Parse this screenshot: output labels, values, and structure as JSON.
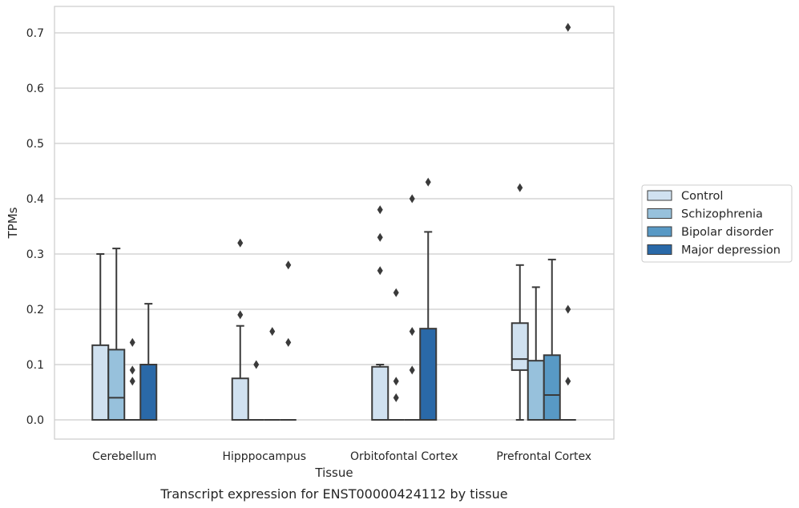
{
  "chart_data": {
    "type": "box",
    "caption": "Transcript expression for ENST00000424112 by tissue",
    "xlabel": "Tissue",
    "ylabel": "TPMs",
    "ylim": [
      -0.035,
      0.745
    ],
    "yticks": [
      "0.0",
      "0.1",
      "0.2",
      "0.3",
      "0.4",
      "0.5",
      "0.6",
      "0.7"
    ],
    "grid": true,
    "legend_position": "right",
    "categories": [
      "Cerebellum",
      "Hipppocampus",
      "Orbitofontal Cortex",
      "Prefrontal Cortex"
    ],
    "series": [
      {
        "name": "Control",
        "color": "#d0e1f0",
        "boxes": [
          {
            "q1": 0,
            "median": 0,
            "q3": 0.135,
            "whislo": 0,
            "whishi": 0.3,
            "fliers": []
          },
          {
            "q1": 0,
            "median": 0,
            "q3": 0.075,
            "whislo": 0,
            "whishi": 0.17,
            "fliers": [
              0.19,
              0.32
            ]
          },
          {
            "q1": 0,
            "median": 0,
            "q3": 0.096,
            "whislo": 0,
            "whishi": 0.1,
            "fliers": [
              0.27,
              0.33,
              0.38
            ]
          },
          {
            "q1": 0.09,
            "median": 0.11,
            "q3": 0.175,
            "whislo": 0,
            "whishi": 0.28,
            "fliers": [
              0.42
            ]
          }
        ]
      },
      {
        "name": "Schizophrenia",
        "color": "#97c1dc",
        "boxes": [
          {
            "q1": 0,
            "median": 0.04,
            "q3": 0.127,
            "whislo": 0,
            "whishi": 0.31,
            "fliers": []
          },
          {
            "q1": 0,
            "median": 0,
            "q3": 0,
            "whislo": 0,
            "whishi": 0,
            "fliers": [
              0.1
            ]
          },
          {
            "q1": 0,
            "median": 0,
            "q3": 0,
            "whislo": 0,
            "whishi": 0,
            "fliers": [
              0.04,
              0.07,
              0.23
            ]
          },
          {
            "q1": 0,
            "median": 0,
            "q3": 0.107,
            "whislo": 0,
            "whishi": 0.24,
            "fliers": []
          }
        ]
      },
      {
        "name": "Bipolar disorder",
        "color": "#5899c5",
        "boxes": [
          {
            "q1": 0,
            "median": 0,
            "q3": 0,
            "whislo": 0,
            "whishi": 0,
            "fliers": [
              0.07,
              0.09,
              0.14
            ]
          },
          {
            "q1": 0,
            "median": 0,
            "q3": 0,
            "whislo": 0,
            "whishi": 0,
            "fliers": [
              0.16
            ]
          },
          {
            "q1": 0,
            "median": 0,
            "q3": 0,
            "whislo": 0,
            "whishi": 0,
            "fliers": [
              0.09,
              0.16,
              0.4
            ]
          },
          {
            "q1": 0,
            "median": 0.045,
            "q3": 0.117,
            "whislo": 0,
            "whishi": 0.29,
            "fliers": []
          }
        ]
      },
      {
        "name": "Major depression",
        "color": "#2a69a8",
        "boxes": [
          {
            "q1": 0,
            "median": 0,
            "q3": 0.1,
            "whislo": 0,
            "whishi": 0.21,
            "fliers": []
          },
          {
            "q1": 0,
            "median": 0,
            "q3": 0,
            "whislo": 0,
            "whishi": 0,
            "fliers": [
              0.14,
              0.28
            ]
          },
          {
            "q1": 0,
            "median": 0,
            "q3": 0.165,
            "whislo": 0,
            "whishi": 0.34,
            "fliers": [
              0.43
            ]
          },
          {
            "q1": 0,
            "median": 0,
            "q3": 0,
            "whislo": 0,
            "whishi": 0,
            "fliers": [
              0.07,
              0.2,
              0.71
            ]
          }
        ]
      }
    ]
  }
}
